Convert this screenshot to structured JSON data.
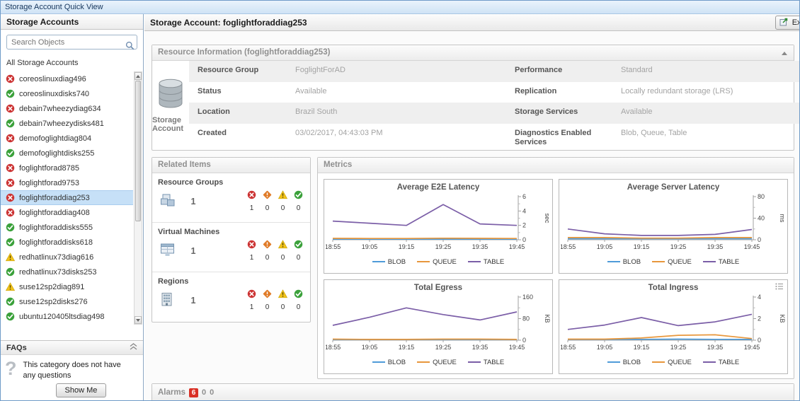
{
  "window": {
    "title": "Storage Account Quick View"
  },
  "colors": {
    "error": "#cc3333",
    "critical": "#e07b28",
    "warning": "#f2c31b",
    "ok": "#3ba13b",
    "selected_item": "#c6e0f7",
    "alarm_badge": "#d93025"
  },
  "sidebar": {
    "title": "Storage Accounts",
    "search": {
      "placeholder": "Search Objects"
    },
    "list_title": "All Storage Accounts",
    "accounts": [
      {
        "name": "coreoslinuxdiag496",
        "status": "error",
        "selected": false
      },
      {
        "name": "coreoslinuxdisks740",
        "status": "ok",
        "selected": false
      },
      {
        "name": "debain7wheezydiag634",
        "status": "error",
        "selected": false
      },
      {
        "name": "debain7wheezydisks481",
        "status": "ok",
        "selected": false
      },
      {
        "name": "demofoglightdiag804",
        "status": "error",
        "selected": false
      },
      {
        "name": "demofoglightdisks255",
        "status": "ok",
        "selected": false
      },
      {
        "name": "foglightforad8785",
        "status": "error",
        "selected": false
      },
      {
        "name": "foglightforad9753",
        "status": "error",
        "selected": false
      },
      {
        "name": "foglightforaddiag253",
        "status": "error",
        "selected": true
      },
      {
        "name": "foglightforaddiag408",
        "status": "error",
        "selected": false
      },
      {
        "name": "foglightforaddisks555",
        "status": "ok",
        "selected": false
      },
      {
        "name": "foglightforaddisks618",
        "status": "ok",
        "selected": false
      },
      {
        "name": "redhatlinux73diag616",
        "status": "warning",
        "selected": false
      },
      {
        "name": "redhatlinux73disks253",
        "status": "ok",
        "selected": false
      },
      {
        "name": "suse12sp2diag891",
        "status": "warning",
        "selected": false
      },
      {
        "name": "suse12sp2disks276",
        "status": "ok",
        "selected": false
      },
      {
        "name": "ubuntu120405ltsdiag498",
        "status": "ok",
        "selected": false
      }
    ],
    "faq": {
      "title": "FAQs",
      "message": "This category does not have any questions",
      "show_me_label": "Show Me"
    }
  },
  "main": {
    "header": {
      "title": "Storage Account: foglightforaddiag253",
      "explore_label": "Explore"
    },
    "resource_info": {
      "title": "Resource Information (foglightforaddiag253)",
      "entity_label": "Storage Account",
      "rows": [
        {
          "cells": [
            {
              "label": "Resource Group",
              "value": "FoglightForAD"
            },
            {
              "label": "Performance",
              "value": "Standard"
            }
          ]
        },
        {
          "cells": [
            {
              "label": "Status",
              "value": "Available"
            },
            {
              "label": "Replication",
              "value": "Locally redundant storage (LRS)"
            }
          ]
        },
        {
          "cells": [
            {
              "label": "Location",
              "value": "Brazil South"
            },
            {
              "label": "Storage Services",
              "value": "Available"
            }
          ]
        },
        {
          "cells": [
            {
              "label": "Created",
              "value": "03/02/2017, 04:43:03 PM"
            },
            {
              "label": "Diagnostics Enabled Services",
              "value": "Blob, Queue, Table"
            }
          ]
        }
      ]
    },
    "related_items": {
      "title": "Related Items",
      "rows": [
        {
          "label": "Resource Groups",
          "icon": "resource-group",
          "count": "1",
          "statuses": {
            "error": "1",
            "critical": "0",
            "warning": "0",
            "ok": "0"
          }
        },
        {
          "label": "Virtual Machines",
          "icon": "virtual-machine",
          "count": "1",
          "statuses": {
            "error": "1",
            "critical": "0",
            "warning": "0",
            "ok": "0"
          }
        },
        {
          "label": "Regions",
          "icon": "region",
          "count": "1",
          "statuses": {
            "error": "1",
            "critical": "0",
            "warning": "0",
            "ok": "0"
          }
        }
      ]
    },
    "metrics_title": "Metrics",
    "alarms": {
      "title": "Alarms",
      "counts": [
        {
          "value": "6",
          "severity": "fatal"
        },
        {
          "value": "0",
          "severity": "critical"
        },
        {
          "value": "0",
          "severity": "warning"
        }
      ]
    }
  },
  "chart_data": [
    {
      "type": "line",
      "title": "Average E2E Latency",
      "ylabel": "sec",
      "ylim": [
        0,
        6
      ],
      "yticks": [
        0,
        2,
        4,
        6
      ],
      "categories": [
        "18:55",
        "19:05",
        "19:15",
        "19:25",
        "19:35",
        "19:45"
      ],
      "legend_position": "bottom",
      "series": [
        {
          "name": "BLOB",
          "color": "#4f9bd9",
          "values": [
            0.08,
            0.08,
            0.08,
            0.09,
            0.08,
            0.08
          ]
        },
        {
          "name": "QUEUE",
          "color": "#e8973c",
          "values": [
            0.2,
            0.18,
            0.18,
            0.22,
            0.2,
            0.18
          ]
        },
        {
          "name": "TABLE",
          "color": "#7b5ea7",
          "values": [
            2.6,
            2.3,
            2.0,
            4.9,
            2.2,
            2.0
          ]
        }
      ]
    },
    {
      "type": "line",
      "title": "Average Server Latency",
      "ylabel": "ms",
      "ylim": [
        0,
        80
      ],
      "yticks": [
        0,
        40,
        80
      ],
      "categories": [
        "18:55",
        "19:05",
        "19:15",
        "19:25",
        "19:35",
        "19:45"
      ],
      "legend_position": "bottom",
      "series": [
        {
          "name": "BLOB",
          "color": "#4f9bd9",
          "values": [
            2,
            2,
            2,
            2,
            2,
            2
          ]
        },
        {
          "name": "QUEUE",
          "color": "#e8973c",
          "values": [
            4,
            4,
            3,
            3,
            4,
            4
          ]
        },
        {
          "name": "TABLE",
          "color": "#7b5ea7",
          "values": [
            20,
            11,
            8,
            8,
            10,
            19
          ]
        }
      ]
    },
    {
      "type": "line",
      "title": "Total Egress",
      "ylabel": "KB",
      "ylim": [
        0,
        160
      ],
      "yticks": [
        0,
        80,
        160
      ],
      "categories": [
        "18:55",
        "19:05",
        "19:15",
        "19:25",
        "19:35",
        "19:45"
      ],
      "legend_position": "bottom",
      "series": [
        {
          "name": "BLOB",
          "color": "#4f9bd9",
          "values": [
            2,
            2,
            2,
            2,
            2,
            2
          ]
        },
        {
          "name": "QUEUE",
          "color": "#e8973c",
          "values": [
            4,
            3,
            3,
            4,
            4,
            3
          ]
        },
        {
          "name": "TABLE",
          "color": "#7b5ea7",
          "values": [
            55,
            85,
            120,
            95,
            75,
            105
          ]
        }
      ]
    },
    {
      "type": "line",
      "title": "Total Ingress",
      "ylabel": "KB",
      "ylim": [
        0,
        4
      ],
      "yticks": [
        0,
        2,
        4
      ],
      "categories": [
        "18:55",
        "19:05",
        "19:15",
        "19:25",
        "19:35",
        "19:45"
      ],
      "legend_position": "bottom",
      "has_options_icon": true,
      "series": [
        {
          "name": "BLOB",
          "color": "#4f9bd9",
          "values": [
            0.07,
            0.07,
            0.08,
            0.1,
            0.08,
            0.07
          ]
        },
        {
          "name": "QUEUE",
          "color": "#e8973c",
          "values": [
            0.1,
            0.1,
            0.2,
            0.45,
            0.5,
            0.15
          ]
        },
        {
          "name": "TABLE",
          "color": "#7b5ea7",
          "values": [
            1.0,
            1.4,
            2.1,
            1.35,
            1.7,
            2.4
          ]
        }
      ]
    }
  ]
}
